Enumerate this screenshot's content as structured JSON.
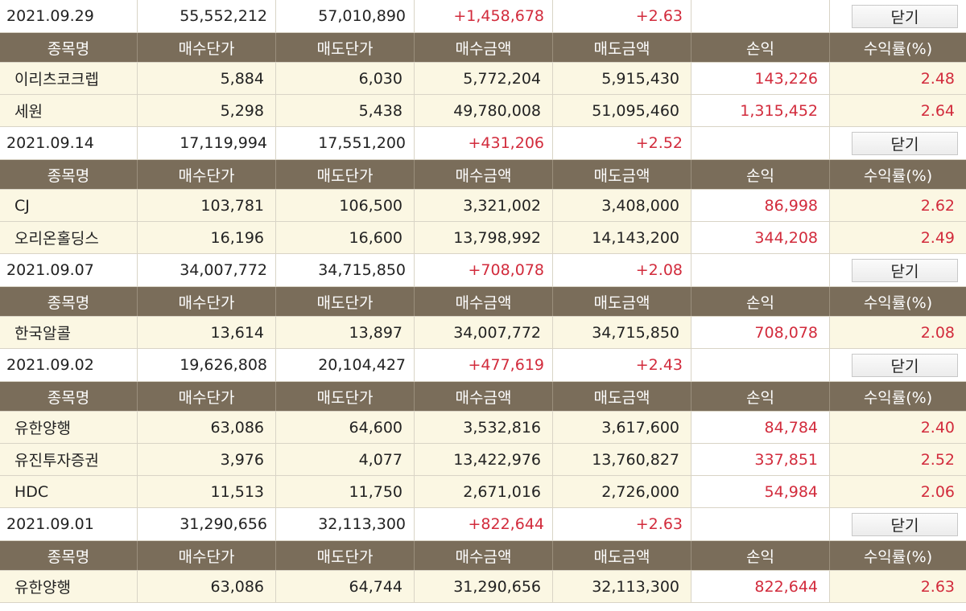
{
  "columns": [
    "종목명",
    "매수단가",
    "매도단가",
    "매수금액",
    "매도금액",
    "손익",
    "수익률(%)"
  ],
  "close_label": "닫기",
  "groups": [
    {
      "summary": {
        "date": "2021.09.29",
        "buy_total": "55,552,212",
        "sell_total": "57,010,890",
        "profit": "+1,458,678",
        "rate": "+2.63"
      },
      "items": [
        {
          "name": "이리츠코크렙",
          "buy_price": "5,884",
          "sell_price": "6,030",
          "buy_amount": "5,772,204",
          "sell_amount": "5,915,430",
          "profit": "143,226",
          "rate": "2.48"
        },
        {
          "name": "세원",
          "buy_price": "5,298",
          "sell_price": "5,438",
          "buy_amount": "49,780,008",
          "sell_amount": "51,095,460",
          "profit": "1,315,452",
          "rate": "2.64"
        }
      ]
    },
    {
      "summary": {
        "date": "2021.09.14",
        "buy_total": "17,119,994",
        "sell_total": "17,551,200",
        "profit": "+431,206",
        "rate": "+2.52"
      },
      "items": [
        {
          "name": "CJ",
          "buy_price": "103,781",
          "sell_price": "106,500",
          "buy_amount": "3,321,002",
          "sell_amount": "3,408,000",
          "profit": "86,998",
          "rate": "2.62"
        },
        {
          "name": "오리온홀딩스",
          "buy_price": "16,196",
          "sell_price": "16,600",
          "buy_amount": "13,798,992",
          "sell_amount": "14,143,200",
          "profit": "344,208",
          "rate": "2.49"
        }
      ]
    },
    {
      "summary": {
        "date": "2021.09.07",
        "buy_total": "34,007,772",
        "sell_total": "34,715,850",
        "profit": "+708,078",
        "rate": "+2.08"
      },
      "items": [
        {
          "name": "한국알콜",
          "buy_price": "13,614",
          "sell_price": "13,897",
          "buy_amount": "34,007,772",
          "sell_amount": "34,715,850",
          "profit": "708,078",
          "rate": "2.08"
        }
      ]
    },
    {
      "summary": {
        "date": "2021.09.02",
        "buy_total": "19,626,808",
        "sell_total": "20,104,427",
        "profit": "+477,619",
        "rate": "+2.43"
      },
      "items": [
        {
          "name": "유한양행",
          "buy_price": "63,086",
          "sell_price": "64,600",
          "buy_amount": "3,532,816",
          "sell_amount": "3,617,600",
          "profit": "84,784",
          "rate": "2.40"
        },
        {
          "name": "유진투자증권",
          "buy_price": "3,976",
          "sell_price": "4,077",
          "buy_amount": "13,422,976",
          "sell_amount": "13,760,827",
          "profit": "337,851",
          "rate": "2.52"
        },
        {
          "name": "HDC",
          "buy_price": "11,513",
          "sell_price": "11,750",
          "buy_amount": "2,671,016",
          "sell_amount": "2,726,000",
          "profit": "54,984",
          "rate": "2.06"
        }
      ]
    },
    {
      "summary": {
        "date": "2021.09.01",
        "buy_total": "31,290,656",
        "sell_total": "32,113,300",
        "profit": "+822,644",
        "rate": "+2.63"
      },
      "items": [
        {
          "name": "유한양행",
          "buy_price": "63,086",
          "sell_price": "64,744",
          "buy_amount": "31,290,656",
          "sell_amount": "32,113,300",
          "profit": "822,644",
          "rate": "2.63"
        }
      ]
    }
  ]
}
